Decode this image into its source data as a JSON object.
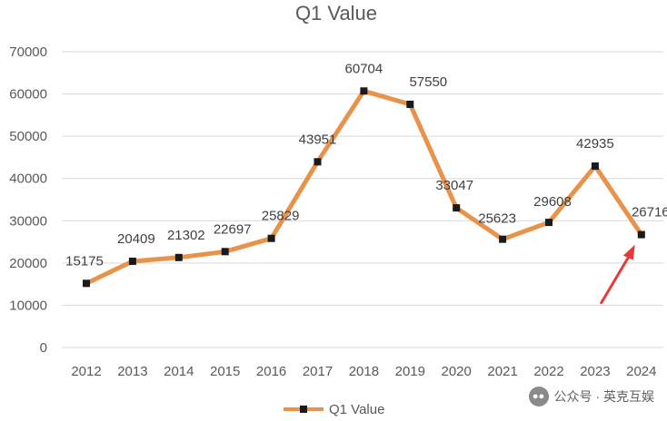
{
  "chart_data": {
    "type": "line",
    "title": "Q1 Value",
    "xlabel": "",
    "ylabel": "",
    "categories": [
      "2012",
      "2013",
      "2014",
      "2015",
      "2016",
      "2017",
      "2018",
      "2019",
      "2020",
      "2021",
      "2022",
      "2023",
      "2024"
    ],
    "series": [
      {
        "name": "Q1 Value",
        "values": [
          15175,
          20409,
          21302,
          22697,
          25829,
          43951,
          60704,
          57550,
          33047,
          25623,
          29608,
          42935,
          26716
        ]
      }
    ],
    "ylim": [
      0,
      70000
    ],
    "yticks": [
      "0",
      "10000",
      "20000",
      "30000",
      "40000",
      "50000",
      "60000",
      "70000"
    ],
    "grid": true,
    "legend": "bottom-center",
    "annotation": "red arrow pointing to 2024 value",
    "colors": {
      "line": "#e8924a",
      "marker": "#1a1a1a",
      "arrow": "#e83a3a",
      "grid": "#d9d9d9"
    }
  },
  "watermark": {
    "text": "公众号 · 英克互娱",
    "icon": "wechat-icon"
  }
}
